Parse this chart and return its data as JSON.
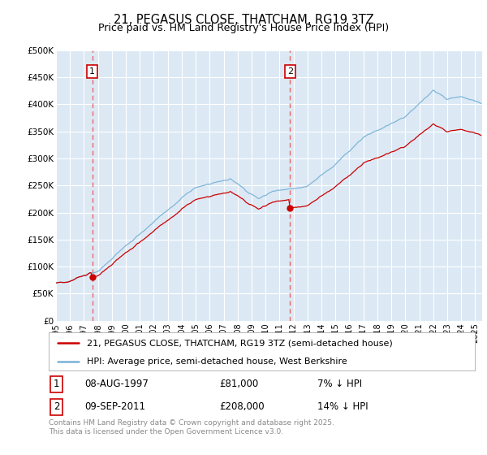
{
  "title": "21, PEGASUS CLOSE, THATCHAM, RG19 3TZ",
  "subtitle": "Price paid vs. HM Land Registry's House Price Index (HPI)",
  "ylabel_ticks": [
    "£0",
    "£50K",
    "£100K",
    "£150K",
    "£200K",
    "£250K",
    "£300K",
    "£350K",
    "£400K",
    "£450K",
    "£500K"
  ],
  "ylim": [
    0,
    500000
  ],
  "xlim_start": 1995.0,
  "xlim_end": 2025.5,
  "plot_bg_color": "#dce9f5",
  "grid_color": "#ffffff",
  "red_line_color": "#cc0000",
  "blue_line_color": "#7ab3d6",
  "marker1_x": 1997.6,
  "marker1_y": 81000,
  "marker2_x": 2011.75,
  "marker2_y": 208000,
  "legend_red": "21, PEGASUS CLOSE, THATCHAM, RG19 3TZ (semi-detached house)",
  "legend_blue": "HPI: Average price, semi-detached house, West Berkshire",
  "marker1_date": "08-AUG-1997",
  "marker1_price": "£81,000",
  "marker1_hpi": "7% ↓ HPI",
  "marker2_date": "09-SEP-2011",
  "marker2_price": "£208,000",
  "marker2_hpi": "14% ↓ HPI",
  "footnote": "Contains HM Land Registry data © Crown copyright and database right 2025.\nThis data is licensed under the Open Government Licence v3.0."
}
